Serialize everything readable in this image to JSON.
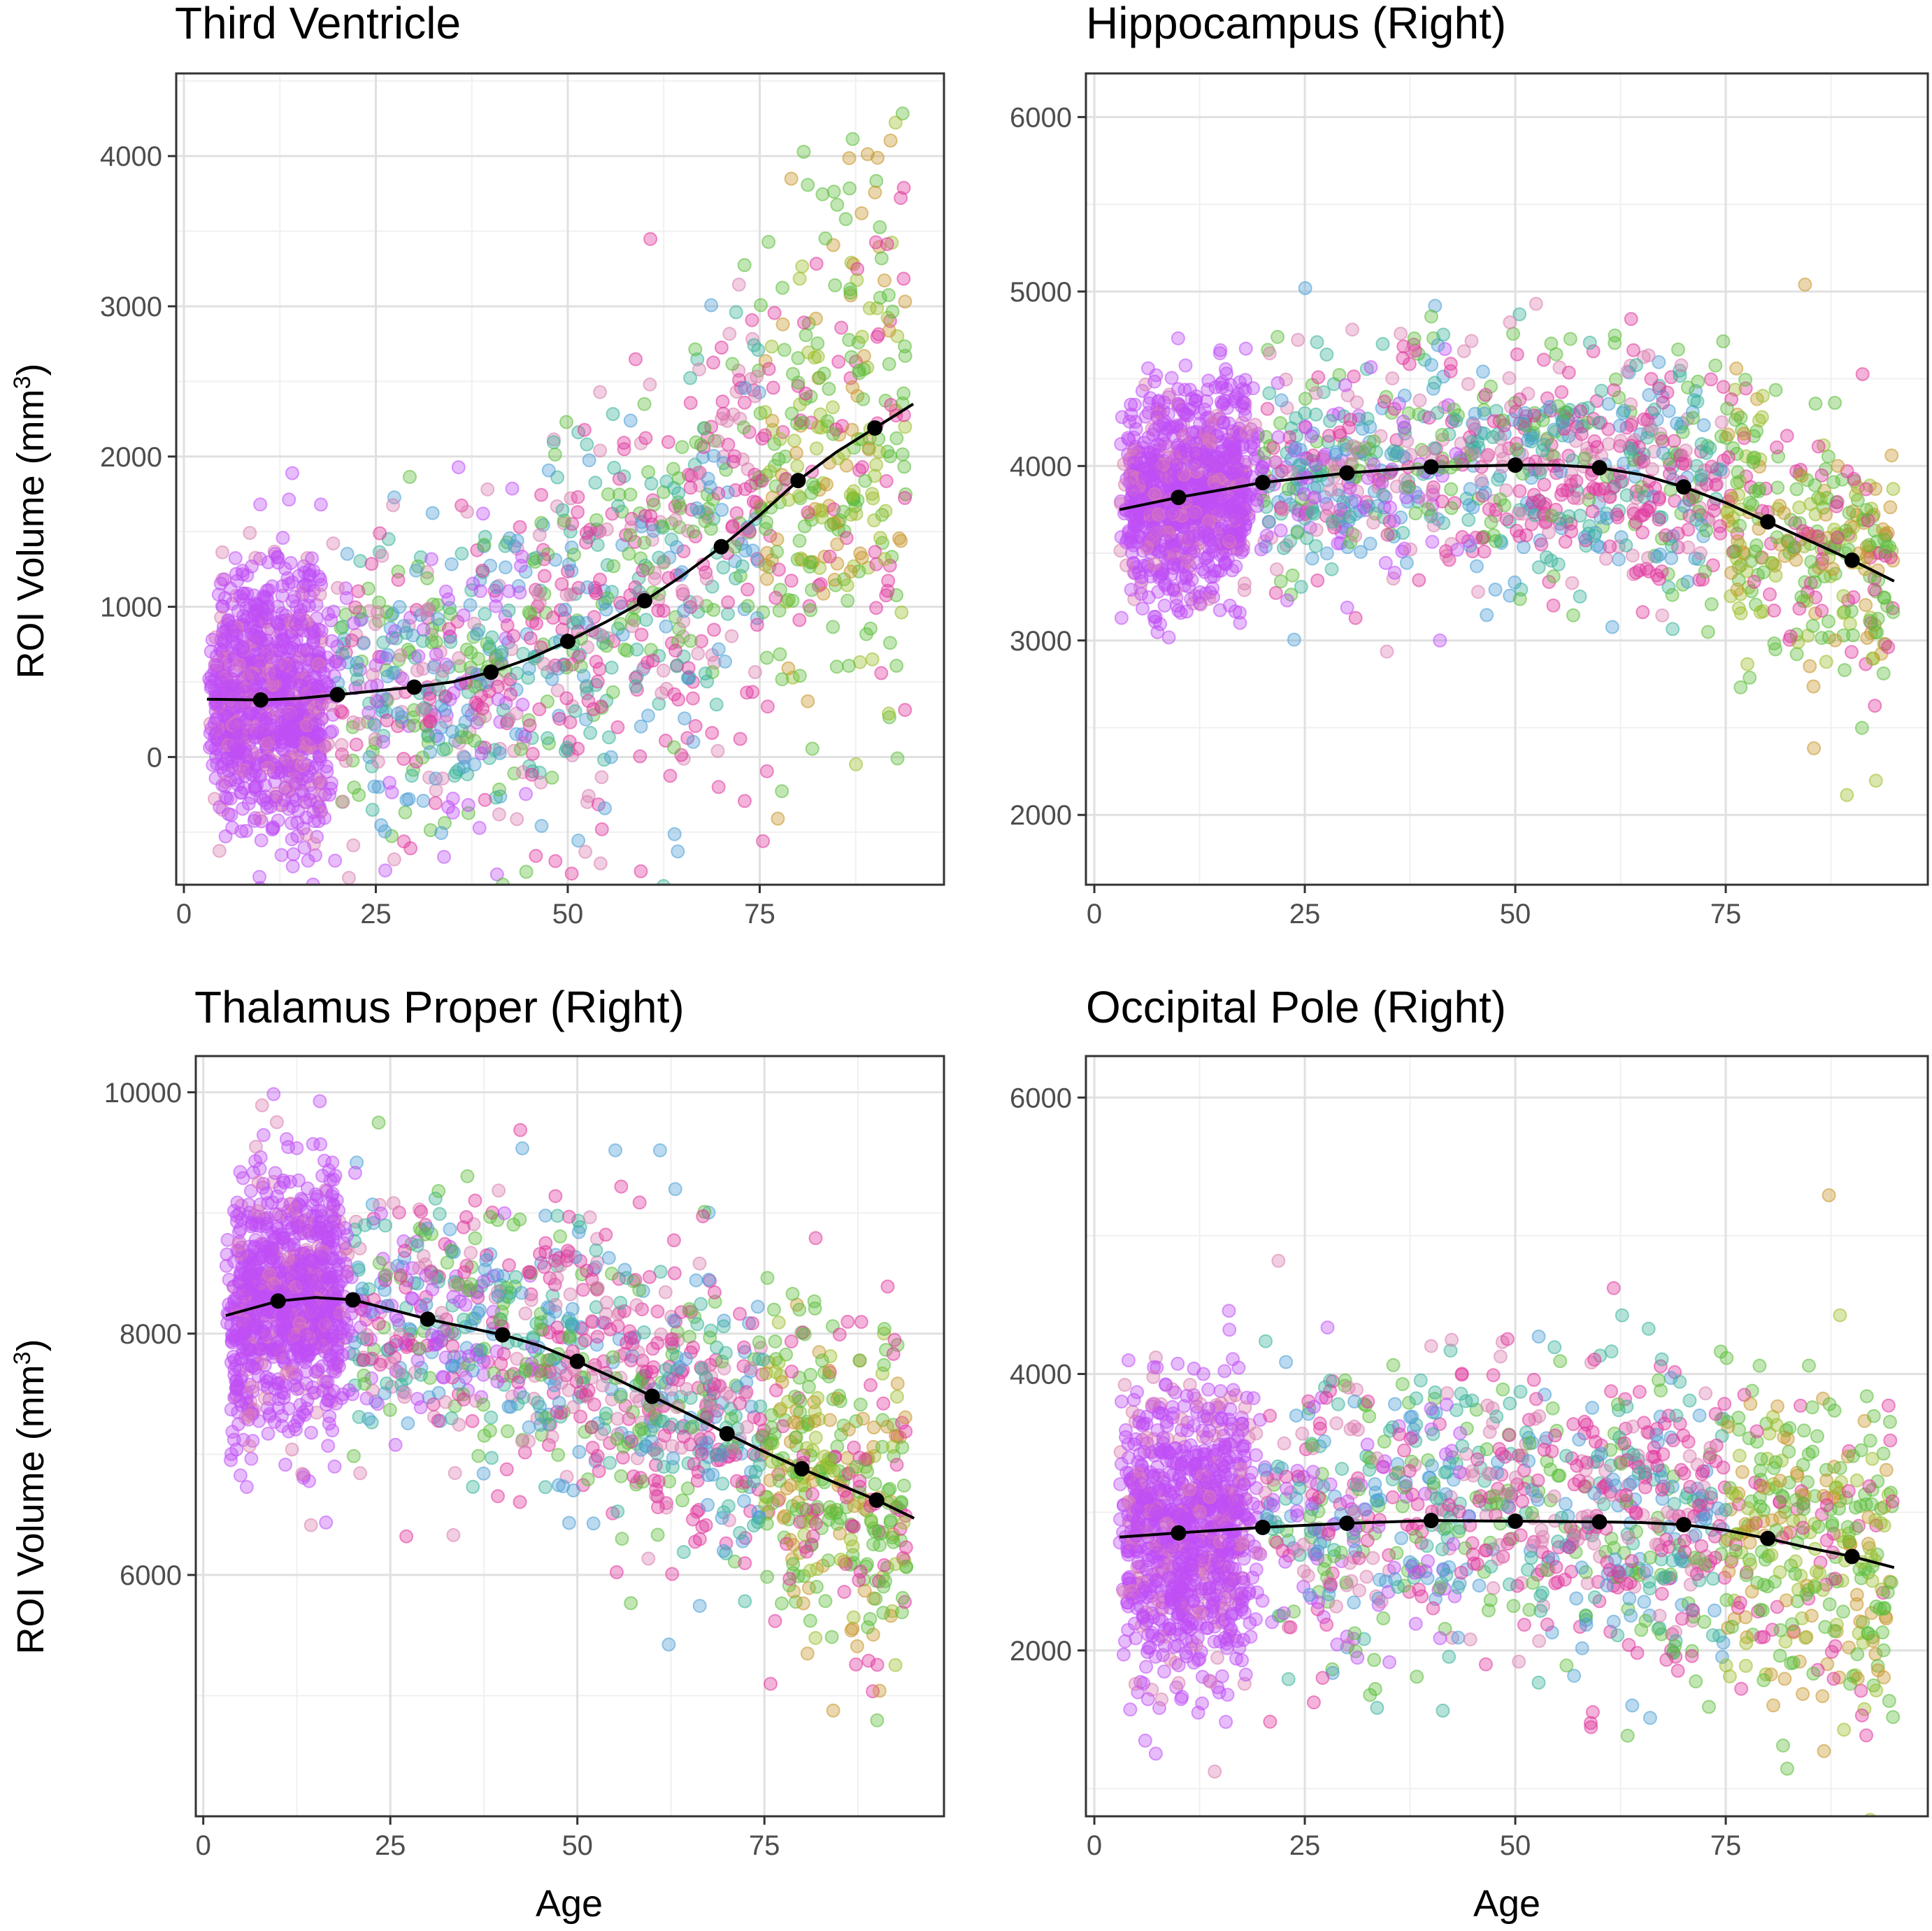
{
  "figure": {
    "x_axis_title": "Age",
    "y_axis_title": "ROI Volume (mm",
    "y_axis_title_superscript": "3",
    "y_axis_title_close": ")",
    "point_colors": [
      "#c04ff5",
      "#e0389e",
      "#5bbd3a",
      "#4b9fd6",
      "#9bbd2a",
      "#3ab39a",
      "#d97fb0",
      "#c7962b"
    ],
    "fit_line_color": "#000000",
    "grid_major_color": "#e0e0e0",
    "grid_minor_color": "#f0f0f0"
  },
  "chart_data": [
    {
      "id": "third-ventricle",
      "type": "scatter",
      "title": "Third Ventricle",
      "xlabel": "",
      "ylabel": "ROI Volume (mm3)",
      "xlim": [
        -1,
        99
      ],
      "ylim": [
        -850,
        4550
      ],
      "x_ticks": [
        0,
        25,
        50,
        75
      ],
      "y_ticks": [
        0,
        1000,
        2000,
        3000,
        4000
      ],
      "y_tick_labels": [
        "0",
        "1000",
        "2000",
        "3000",
        "4000"
      ],
      "grid": true,
      "fit_curve": [
        [
          3,
          385
        ],
        [
          10,
          380
        ],
        [
          15,
          390
        ],
        [
          20,
          415
        ],
        [
          30,
          465
        ],
        [
          35,
          500
        ],
        [
          40,
          565
        ],
        [
          45,
          655
        ],
        [
          50,
          770
        ],
        [
          55,
          900
        ],
        [
          60,
          1040
        ],
        [
          65,
          1210
        ],
        [
          70,
          1400
        ],
        [
          75,
          1610
        ],
        [
          80,
          1840
        ],
        [
          85,
          2030
        ],
        [
          90,
          2190
        ],
        [
          95,
          2350
        ]
      ],
      "fit_points": [
        [
          10,
          380
        ],
        [
          20,
          415
        ],
        [
          30,
          465
        ],
        [
          40,
          565
        ],
        [
          50,
          770
        ],
        [
          60,
          1040
        ],
        [
          70,
          1400
        ],
        [
          80,
          1840
        ],
        [
          90,
          2190
        ]
      ],
      "scatter_model": {
        "x_min": 3,
        "x_max": 94,
        "spread": 380,
        "spread_growth": 0.9,
        "n": 2200
      }
    },
    {
      "id": "hippocampus-right",
      "type": "scatter",
      "title": "Hippocampus (Right)",
      "xlabel": "",
      "ylabel": "",
      "xlim": [
        -1,
        99
      ],
      "ylim": [
        1600,
        6250
      ],
      "x_ticks": [
        0,
        25,
        50,
        75
      ],
      "y_ticks": [
        2000,
        3000,
        4000,
        5000,
        6000
      ],
      "y_tick_labels": [
        "2000",
        "3000",
        "4000",
        "5000",
        "6000"
      ],
      "grid": true,
      "fit_curve": [
        [
          3,
          3750
        ],
        [
          10,
          3820
        ],
        [
          20,
          3905
        ],
        [
          30,
          3960
        ],
        [
          40,
          3995
        ],
        [
          50,
          4005
        ],
        [
          55,
          4005
        ],
        [
          60,
          3990
        ],
        [
          65,
          3950
        ],
        [
          70,
          3880
        ],
        [
          75,
          3790
        ],
        [
          80,
          3680
        ],
        [
          85,
          3570
        ],
        [
          90,
          3460
        ],
        [
          95,
          3340
        ]
      ],
      "fit_points": [
        [
          10,
          3820
        ],
        [
          20,
          3905
        ],
        [
          30,
          3960
        ],
        [
          40,
          3995
        ],
        [
          50,
          4005
        ],
        [
          60,
          3990
        ],
        [
          70,
          3880
        ],
        [
          80,
          3680
        ],
        [
          90,
          3460
        ]
      ],
      "scatter_model": {
        "x_min": 3,
        "x_max": 95,
        "spread": 300,
        "spread_growth": 0.2,
        "n": 2200
      }
    },
    {
      "id": "thalamus-proper-right",
      "type": "scatter",
      "title": "Thalamus Proper (Right)",
      "xlabel": "Age",
      "ylabel": "ROI Volume (mm3)",
      "xlim": [
        -1,
        99
      ],
      "ylim": [
        4000,
        10300
      ],
      "x_ticks": [
        0,
        25,
        50,
        75
      ],
      "y_ticks": [
        6000,
        8000,
        10000
      ],
      "y_tick_labels": [
        "6000",
        "8000",
        "10000"
      ],
      "grid": true,
      "fit_curve": [
        [
          3,
          8150
        ],
        [
          10,
          8270
        ],
        [
          15,
          8300
        ],
        [
          20,
          8280
        ],
        [
          30,
          8120
        ],
        [
          40,
          7990
        ],
        [
          45,
          7900
        ],
        [
          50,
          7770
        ],
        [
          55,
          7630
        ],
        [
          60,
          7480
        ],
        [
          65,
          7330
        ],
        [
          70,
          7170
        ],
        [
          75,
          7020
        ],
        [
          80,
          6880
        ],
        [
          85,
          6750
        ],
        [
          90,
          6620
        ],
        [
          95,
          6470
        ]
      ],
      "fit_points": [
        [
          10,
          8270
        ],
        [
          20,
          8280
        ],
        [
          30,
          8120
        ],
        [
          40,
          7990
        ],
        [
          50,
          7770
        ],
        [
          60,
          7480
        ],
        [
          70,
          7170
        ],
        [
          80,
          6880
        ],
        [
          90,
          6620
        ]
      ],
      "scatter_model": {
        "x_min": 3,
        "x_max": 94,
        "spread": 520,
        "spread_growth": 0.2,
        "n": 2200
      }
    },
    {
      "id": "occipital-pole-right",
      "type": "scatter",
      "title": "Occipital Pole (Right)",
      "xlabel": "Age",
      "ylabel": "",
      "xlim": [
        -1,
        99
      ],
      "ylim": [
        800,
        6300
      ],
      "x_ticks": [
        0,
        25,
        50,
        75
      ],
      "y_ticks": [
        2000,
        4000,
        6000
      ],
      "y_tick_labels": [
        "2000",
        "4000",
        "6000"
      ],
      "grid": true,
      "fit_curve": [
        [
          3,
          2820
        ],
        [
          10,
          2850
        ],
        [
          20,
          2890
        ],
        [
          30,
          2920
        ],
        [
          40,
          2940
        ],
        [
          50,
          2935
        ],
        [
          60,
          2930
        ],
        [
          65,
          2925
        ],
        [
          70,
          2910
        ],
        [
          75,
          2870
        ],
        [
          80,
          2810
        ],
        [
          85,
          2740
        ],
        [
          90,
          2680
        ],
        [
          95,
          2600
        ]
      ],
      "fit_points": [
        [
          10,
          2850
        ],
        [
          20,
          2890
        ],
        [
          30,
          2920
        ],
        [
          40,
          2940
        ],
        [
          50,
          2935
        ],
        [
          60,
          2930
        ],
        [
          70,
          2910
        ],
        [
          80,
          2810
        ],
        [
          90,
          2680
        ]
      ],
      "scatter_model": {
        "x_min": 3,
        "x_max": 95,
        "spread": 520,
        "spread_growth": 0.1,
        "n": 2200
      }
    }
  ]
}
